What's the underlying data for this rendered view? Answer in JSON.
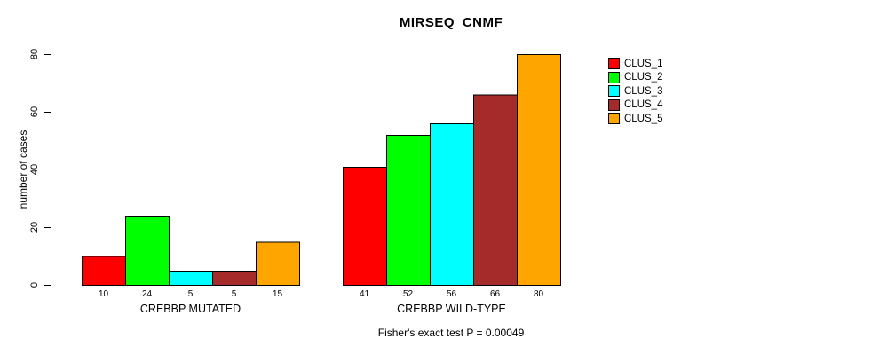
{
  "chart_data": {
    "type": "bar",
    "title": "MIRSEQ_CNMF",
    "ylabel": "number of cases",
    "ylim": [
      0,
      80
    ],
    "yticks": [
      0,
      20,
      40,
      60,
      80
    ],
    "grid": false,
    "legend_position": "right",
    "series": [
      {
        "name": "CLUS_1",
        "color": "#FF0000"
      },
      {
        "name": "CLUS_2",
        "color": "#00FF00"
      },
      {
        "name": "CLUS_3",
        "color": "#00FFFF"
      },
      {
        "name": "CLUS_4",
        "color": "#A52A2A"
      },
      {
        "name": "CLUS_5",
        "color": "#FFA500"
      }
    ],
    "groups": [
      {
        "label": "CREBBP MUTATED",
        "values": [
          10,
          24,
          5,
          5,
          15
        ]
      },
      {
        "label": "CREBBP WILD-TYPE",
        "values": [
          41,
          52,
          56,
          66,
          80
        ]
      }
    ],
    "bar_value_labels_shown": true,
    "annotation": "Fisher's exact test P = 0.00049",
    "axis_color": "#000000",
    "bar_border_color": "#000000"
  }
}
